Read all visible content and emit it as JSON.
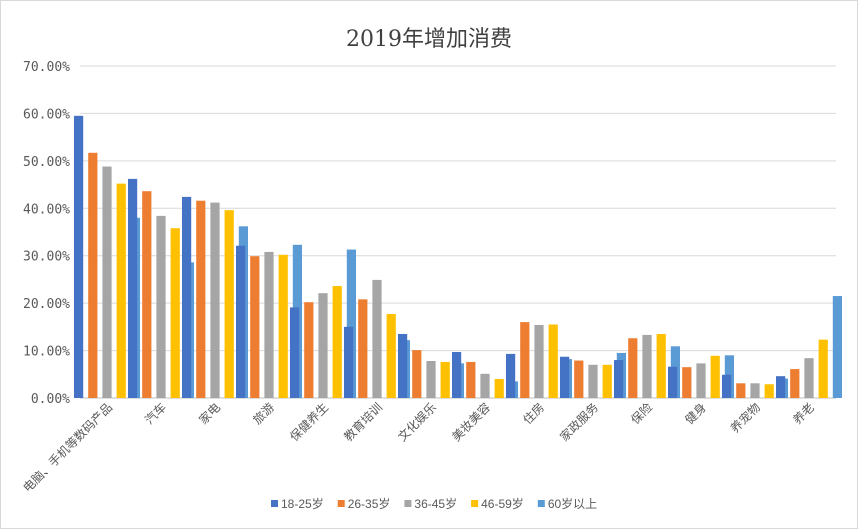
{
  "chart_data": {
    "type": "bar",
    "title": "2019年增加消费",
    "categories": [
      "电脑、手机等数码产品",
      "汽车",
      "家电",
      "旅游",
      "保健养生",
      "教育培训",
      "文化娱乐",
      "美妆美容",
      "住房",
      "家政服务",
      "保险",
      "健身",
      "养宠物",
      "养老"
    ],
    "y_ticks": [
      "0.00%",
      "10.00%",
      "20.00%",
      "30.00%",
      "40.00%",
      "50.00%",
      "60.00%",
      "70.00%"
    ],
    "ylim": [
      0,
      70
    ],
    "grid": true,
    "legend_position": "bottom",
    "series": [
      {
        "name": "18-25岁",
        "color": "#4472C4",
        "values": [
          59.5,
          46.2,
          42.4,
          32.1,
          19.1,
          15.0,
          13.5,
          9.7,
          9.3,
          8.7,
          8.0,
          6.6,
          4.9,
          4.6
        ]
      },
      {
        "name": "26-35岁",
        "color": "#ED7D31",
        "values": [
          51.7,
          43.6,
          41.6,
          29.9,
          20.2,
          20.8,
          10.1,
          7.6,
          16.0,
          7.9,
          12.6,
          6.5,
          3.1,
          6.1
        ]
      },
      {
        "name": "36-45岁",
        "color": "#A5A5A5",
        "values": [
          48.8,
          38.4,
          41.2,
          30.8,
          22.1,
          24.9,
          7.8,
          5.1,
          15.4,
          7.0,
          13.3,
          7.3,
          3.1,
          8.4
        ]
      },
      {
        "name": "46-59岁",
        "color": "#FFC000",
        "values": [
          45.2,
          35.8,
          39.6,
          30.2,
          23.6,
          17.7,
          7.6,
          4.0,
          15.5,
          7.0,
          13.5,
          8.9,
          2.9,
          12.3
        ]
      },
      {
        "name": "60岁以上",
        "color": "#5B9BD5",
        "values": [
          38.0,
          28.6,
          36.2,
          32.3,
          31.3,
          12.2,
          7.3,
          3.5,
          8.2,
          9.5,
          10.9,
          9.0,
          4.1,
          21.5
        ]
      }
    ]
  }
}
